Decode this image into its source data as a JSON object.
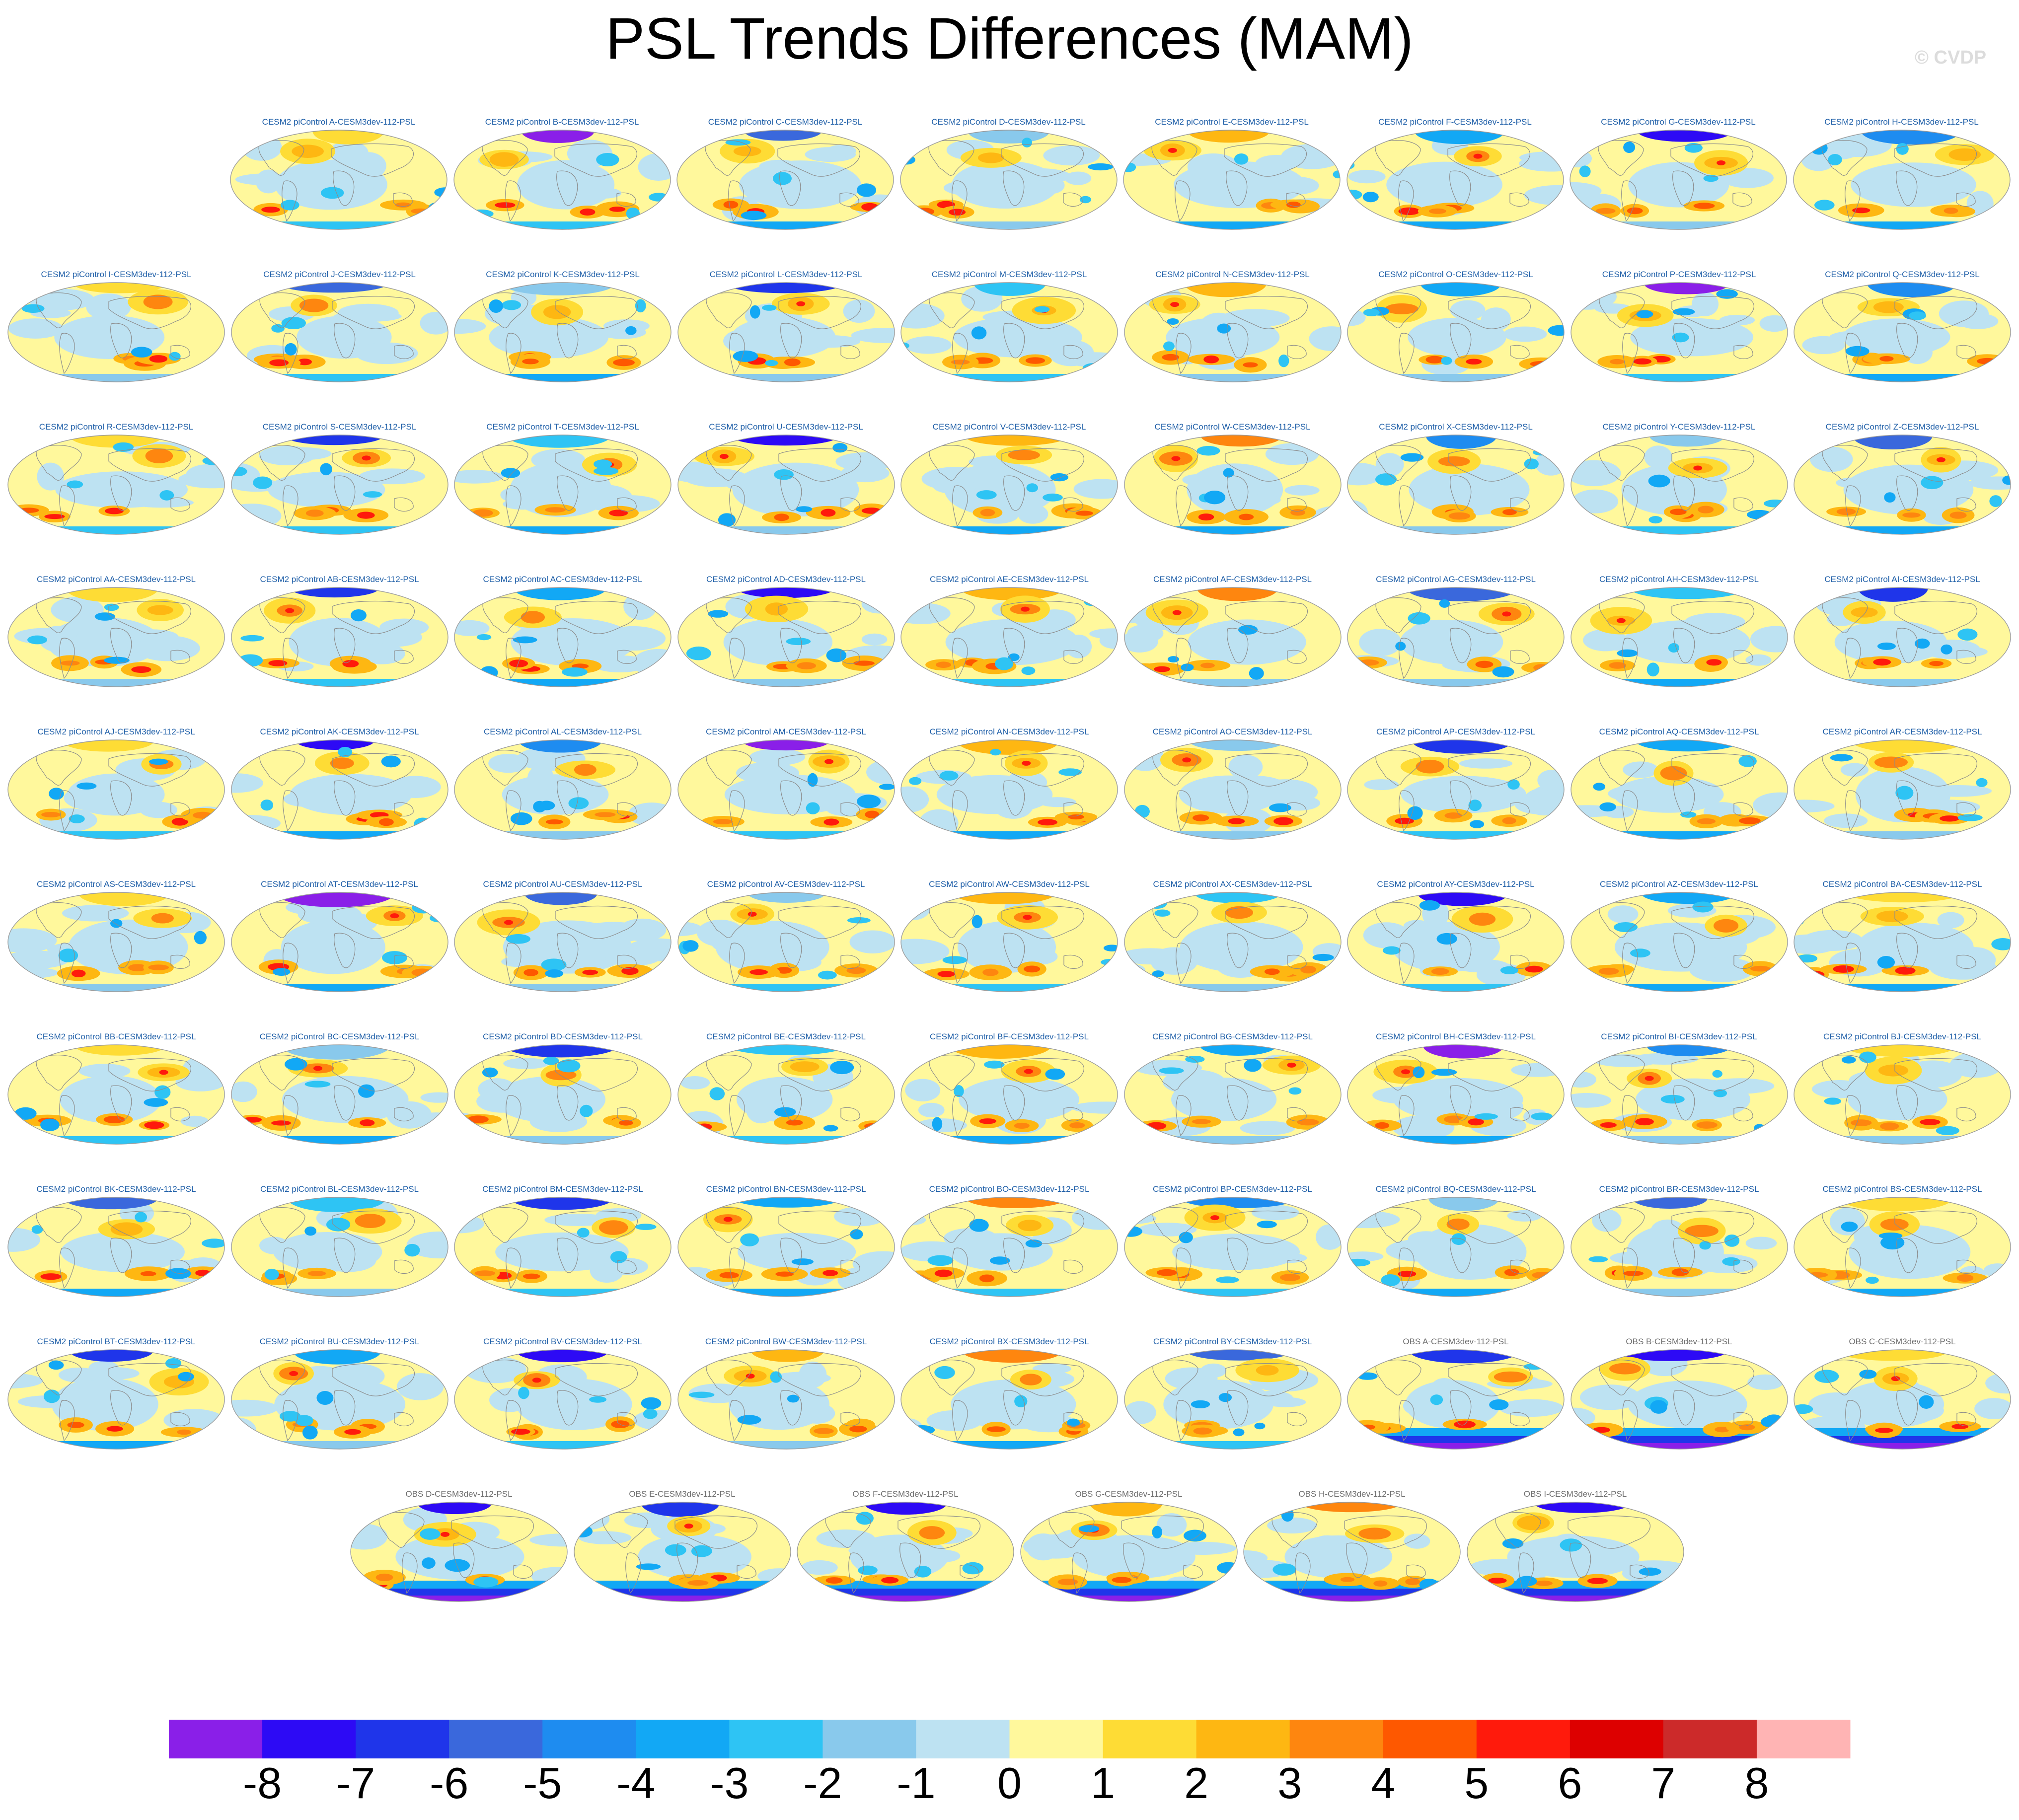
{
  "page": {
    "title": "PSL Trends Differences (MAM)",
    "watermark": "© CVDP"
  },
  "chart_data": {
    "type": "heatmap",
    "title": "PSL Trends Differences (MAM)",
    "projection": "global map (Robinson-like ellipse)",
    "panel_rows": [
      [
        "CESM2 piControl A-CESM3dev-112-PSL",
        "CESM2 piControl B-CESM3dev-112-PSL",
        "CESM2 piControl C-CESM3dev-112-PSL",
        "CESM2 piControl D-CESM3dev-112-PSL",
        "CESM2 piControl E-CESM3dev-112-PSL",
        "CESM2 piControl F-CESM3dev-112-PSL",
        "CESM2 piControl G-CESM3dev-112-PSL",
        "CESM2 piControl H-CESM3dev-112-PSL"
      ],
      [
        "CESM2 piControl I-CESM3dev-112-PSL",
        "CESM2 piControl J-CESM3dev-112-PSL",
        "CESM2 piControl K-CESM3dev-112-PSL",
        "CESM2 piControl L-CESM3dev-112-PSL",
        "CESM2 piControl M-CESM3dev-112-PSL",
        "CESM2 piControl N-CESM3dev-112-PSL",
        "CESM2 piControl O-CESM3dev-112-PSL",
        "CESM2 piControl P-CESM3dev-112-PSL",
        "CESM2 piControl Q-CESM3dev-112-PSL"
      ],
      [
        "CESM2 piControl R-CESM3dev-112-PSL",
        "CESM2 piControl S-CESM3dev-112-PSL",
        "CESM2 piControl T-CESM3dev-112-PSL",
        "CESM2 piControl U-CESM3dev-112-PSL",
        "CESM2 piControl V-CESM3dev-112-PSL",
        "CESM2 piControl W-CESM3dev-112-PSL",
        "CESM2 piControl X-CESM3dev-112-PSL",
        "CESM2 piControl Y-CESM3dev-112-PSL",
        "CESM2 piControl Z-CESM3dev-112-PSL"
      ],
      [
        "CESM2 piControl AA-CESM3dev-112-PSL",
        "CESM2 piControl AB-CESM3dev-112-PSL",
        "CESM2 piControl AC-CESM3dev-112-PSL",
        "CESM2 piControl AD-CESM3dev-112-PSL",
        "CESM2 piControl AE-CESM3dev-112-PSL",
        "CESM2 piControl AF-CESM3dev-112-PSL",
        "CESM2 piControl AG-CESM3dev-112-PSL",
        "CESM2 piControl AH-CESM3dev-112-PSL",
        "CESM2 piControl AI-CESM3dev-112-PSL"
      ],
      [
        "CESM2 piControl AJ-CESM3dev-112-PSL",
        "CESM2 piControl AK-CESM3dev-112-PSL",
        "CESM2 piControl AL-CESM3dev-112-PSL",
        "CESM2 piControl AM-CESM3dev-112-PSL",
        "CESM2 piControl AN-CESM3dev-112-PSL",
        "CESM2 piControl AO-CESM3dev-112-PSL",
        "CESM2 piControl AP-CESM3dev-112-PSL",
        "CESM2 piControl AQ-CESM3dev-112-PSL",
        "CESM2 piControl AR-CESM3dev-112-PSL"
      ],
      [
        "CESM2 piControl AS-CESM3dev-112-PSL",
        "CESM2 piControl AT-CESM3dev-112-PSL",
        "CESM2 piControl AU-CESM3dev-112-PSL",
        "CESM2 piControl AV-CESM3dev-112-PSL",
        "CESM2 piControl AW-CESM3dev-112-PSL",
        "CESM2 piControl AX-CESM3dev-112-PSL",
        "CESM2 piControl AY-CESM3dev-112-PSL",
        "CESM2 piControl AZ-CESM3dev-112-PSL",
        "CESM2 piControl BA-CESM3dev-112-PSL"
      ],
      [
        "CESM2 piControl BB-CESM3dev-112-PSL",
        "CESM2 piControl BC-CESM3dev-112-PSL",
        "CESM2 piControl BD-CESM3dev-112-PSL",
        "CESM2 piControl BE-CESM3dev-112-PSL",
        "CESM2 piControl BF-CESM3dev-112-PSL",
        "CESM2 piControl BG-CESM3dev-112-PSL",
        "CESM2 piControl BH-CESM3dev-112-PSL",
        "CESM2 piControl BI-CESM3dev-112-PSL",
        "CESM2 piControl BJ-CESM3dev-112-PSL"
      ],
      [
        "CESM2 piControl BK-CESM3dev-112-PSL",
        "CESM2 piControl BL-CESM3dev-112-PSL",
        "CESM2 piControl BM-CESM3dev-112-PSL",
        "CESM2 piControl BN-CESM3dev-112-PSL",
        "CESM2 piControl BO-CESM3dev-112-PSL",
        "CESM2 piControl BP-CESM3dev-112-PSL",
        "CESM2 piControl BQ-CESM3dev-112-PSL",
        "CESM2 piControl BR-CESM3dev-112-PSL",
        "CESM2 piControl BS-CESM3dev-112-PSL"
      ],
      [
        "CESM2 piControl BT-CESM3dev-112-PSL",
        "CESM2 piControl BU-CESM3dev-112-PSL",
        "CESM2 piControl BV-CESM3dev-112-PSL",
        "CESM2 piControl BW-CESM3dev-112-PSL",
        "CESM2 piControl BX-CESM3dev-112-PSL",
        "CESM2 piControl BY-CESM3dev-112-PSL",
        "OBS A-CESM3dev-112-PSL",
        "OBS B-CESM3dev-112-PSL",
        "OBS C-CESM3dev-112-PSL"
      ],
      [
        "OBS D-CESM3dev-112-PSL",
        "OBS E-CESM3dev-112-PSL",
        "OBS F-CESM3dev-112-PSL",
        "OBS G-CESM3dev-112-PSL",
        "OBS H-CESM3dev-112-PSL",
        "OBS I-CESM3dev-112-PSL"
      ]
    ],
    "colorbar": {
      "tick_labels": [
        "-8",
        "-7",
        "-6",
        "-5",
        "-4",
        "-3",
        "-2",
        "-1",
        "0",
        "1",
        "2",
        "3",
        "4",
        "5",
        "6",
        "7",
        "8"
      ],
      "colors": [
        "#8a1fe8",
        "#2d0af5",
        "#1f35ea",
        "#3a68dc",
        "#1e8cf0",
        "#12a8f5",
        "#2ec4f4",
        "#89c9ec",
        "#bde2f2",
        "#fff89c",
        "#fedc35",
        "#feb712",
        "#fe860f",
        "#fe5800",
        "#ff1a0c",
        "#dd0000",
        "#cc2a2a",
        "#ffb4b4"
      ],
      "range": [
        -8,
        8
      ],
      "units": ""
    },
    "title_colors": {
      "model": "#1f5fa8",
      "obs": "#6e6e6e"
    }
  }
}
